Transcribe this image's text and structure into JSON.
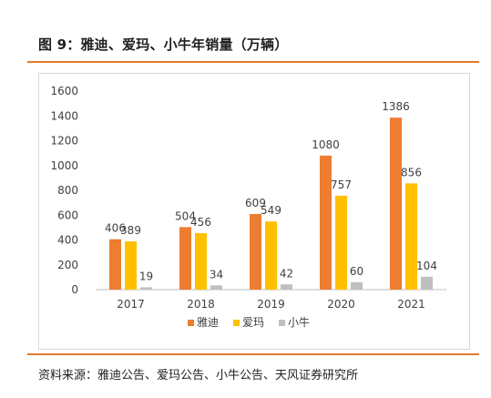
{
  "figure_title": "图 9：雅迪、爱玛、小牛年销量（万辆）",
  "source_note": "资料来源：雅迪公告、爱玛公告、小牛公告、天风证券研究所",
  "chart_data": {
    "type": "bar",
    "title": "图 9：雅迪、爱玛、小牛年销量（万辆）",
    "xlabel": "",
    "ylabel": "",
    "categories": [
      "2017",
      "2018",
      "2019",
      "2020",
      "2021"
    ],
    "ylim": [
      0,
      1600
    ],
    "yticks": [
      0,
      200,
      400,
      600,
      800,
      1000,
      1200,
      1400,
      1600
    ],
    "grid": false,
    "legend_position": "bottom",
    "series": [
      {
        "name": "雅迪",
        "color": "#ED7D31",
        "values": [
          406,
          504,
          609,
          1080,
          1386
        ]
      },
      {
        "name": "爱玛",
        "color": "#FFC000",
        "values": [
          389,
          456,
          549,
          757,
          856
        ]
      },
      {
        "name": "小牛",
        "color": "#BFBFBF",
        "values": [
          19,
          34,
          42,
          60,
          104
        ]
      }
    ]
  }
}
